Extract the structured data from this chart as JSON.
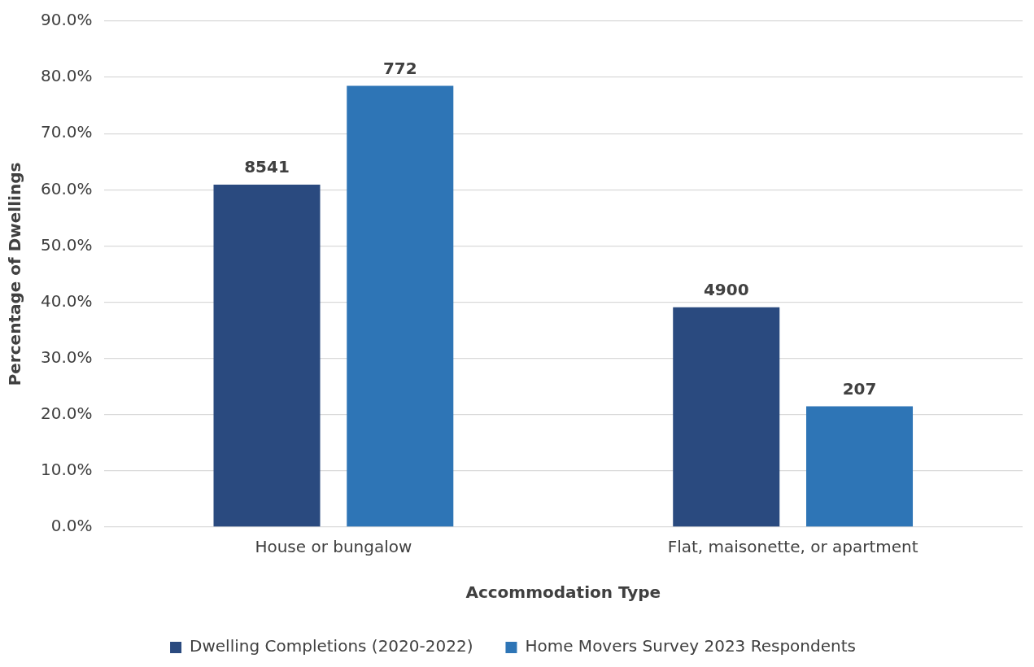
{
  "chart_data": {
    "type": "bar",
    "xlabel": "Accommodation Type",
    "ylabel": "Percentage of Dwellings",
    "categories": [
      "House or bungalow",
      "Flat, maisonette, or apartment"
    ],
    "series": [
      {
        "name": "Dwelling Completions (2020-2022)",
        "color": "#2a4a7f",
        "values": [
          60.9,
          39.1
        ]
      },
      {
        "name": "Home Movers Survey 2023 Respondents",
        "color": "#2e75b6",
        "values": [
          78.5,
          21.5
        ]
      }
    ],
    "annotations": [
      "8541",
      "4900",
      "772",
      "207"
    ],
    "ylim": [
      0,
      90
    ],
    "yticks": [
      {
        "value": 0,
        "label": "0.0%"
      },
      {
        "value": 10,
        "label": "10.0%"
      },
      {
        "value": 20,
        "label": "20.0%"
      },
      {
        "value": 30,
        "label": "30.0%"
      },
      {
        "value": 40,
        "label": "40.0%"
      },
      {
        "value": 50,
        "label": "50.0%"
      },
      {
        "value": 60,
        "label": "60.0%"
      },
      {
        "value": 70,
        "label": "70.0%"
      },
      {
        "value": 80,
        "label": "80.0%"
      },
      {
        "value": 90,
        "label": "90.0%"
      }
    ],
    "grid": "y",
    "legend": "bottom"
  }
}
